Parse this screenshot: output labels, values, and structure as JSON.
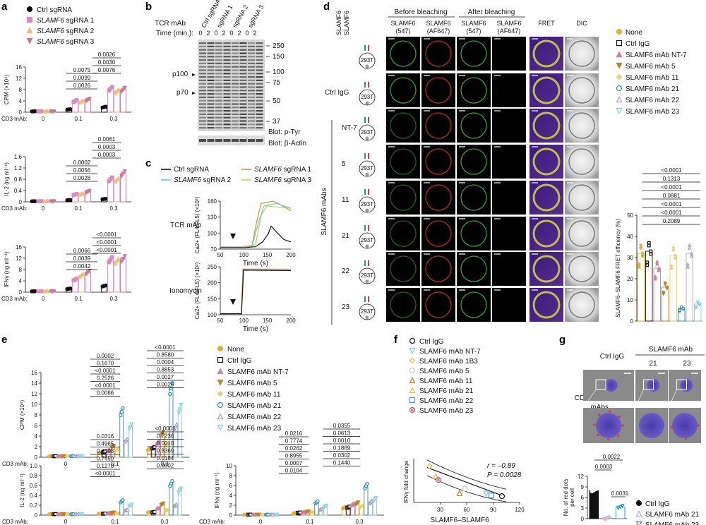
{
  "panels": {
    "a": {
      "label": "a",
      "legend": [
        {
          "name": "Ctrl sgRNA",
          "color": "#111111",
          "marker": "circle"
        },
        {
          "name": "SLAMF6",
          "suffix": " sgRNA 1",
          "color": "#d98cc2",
          "marker": "square"
        },
        {
          "name": "SLAMF6",
          "suffix": " sgRNA 2",
          "color": "#e9c26a",
          "marker": "triangle"
        },
        {
          "name": "SLAMF6",
          "suffix": " sgRNA 3",
          "color": "#c8789e",
          "marker": "triangle-down"
        }
      ],
      "xlabel": "CD3 mAb:",
      "categories": [
        "0",
        "0.1",
        "0.3"
      ]
    },
    "b": {
      "label": "b",
      "treatment_label": "TCR mAb",
      "time_label": "Time (min.):",
      "lanes": [
        "Ctrl sgRNA",
        "sgRNA 1",
        "sgRNA 2",
        "sgRNA 3"
      ],
      "times": [
        "0",
        "2",
        "0",
        "2",
        "0",
        "2",
        "0",
        "2"
      ],
      "mw": [
        "250",
        "150",
        "100",
        "75",
        "50",
        "37"
      ],
      "bands": [
        "p100",
        "p70"
      ],
      "blots": [
        "Blot: p-Tyr",
        "Blot: β-Actin"
      ]
    },
    "c": {
      "label": "c",
      "legend": [
        {
          "name": "Ctrl sgRNA",
          "color": "#111111"
        },
        {
          "name": "SLAMF6",
          "suffix": " sgRNA 1",
          "color": "#c9962a"
        },
        {
          "name": "SLAMF6",
          "suffix": " sgRNA 2",
          "color": "#6ec6d2"
        },
        {
          "name": "SLAMF6",
          "suffix": " sgRNA 3",
          "color": "#c4cc62"
        }
      ],
      "row_labels": [
        "TCR mAb",
        "Ionomycin"
      ],
      "ylabel": "Ca2+ (FL4/FL5) (×10³)",
      "xlabel": "Time (s)"
    },
    "d": {
      "label": "d",
      "col_groups": [
        "Before bleaching",
        "After bleaching"
      ],
      "col_headers": [
        "SLAMF6 (547)",
        "SLAMF6 (AF647)",
        "SLAMF6 (547)",
        "SLAMF6 (AF647)",
        "FRET",
        "DIC"
      ],
      "row_header_top": [
        "SLAMF6",
        "SLAMF6"
      ],
      "row_labels": [
        "",
        "Ctrl IgG",
        "NT-7",
        "5",
        "11",
        "21",
        "22",
        "23"
      ],
      "mabs_label": "SLAMF6 mAbs",
      "legend": [
        {
          "name": "None",
          "color": "#e0b040",
          "marker": "circle"
        },
        {
          "name": "Ctrl IgG",
          "color": "#111111",
          "marker": "open-square"
        },
        {
          "name": "SLAMF6 mAb NT-7",
          "color": "#d97aa0",
          "marker": "triangle"
        },
        {
          "name": "SLAMF6 mAb 5",
          "color": "#b8862a",
          "marker": "triangle-down"
        },
        {
          "name": "SLAMF6 mAb 11",
          "color": "#e8d070",
          "marker": "diamond"
        },
        {
          "name": "SLAMF6 mAb 21",
          "color": "#2a8fa8",
          "marker": "open-circle"
        },
        {
          "name": "SLAMF6 mAb 22",
          "color": "#b0a0c0",
          "marker": "open-triangle"
        },
        {
          "name": "SLAMF6 mAb 23",
          "color": "#7fd0e0",
          "marker": "open-triangle-down"
        }
      ],
      "fret_chart": {
        "ylabel": "SLAMF6–SLAMF6 FRET efficiency (%)",
        "yticks": [
          "0",
          "10",
          "20",
          "30",
          "40",
          "50"
        ],
        "pvalues": [
          "<0.0001",
          "0.1313",
          "<0.0001",
          "0.0881",
          "<0.0001",
          "<0.0001",
          "0.2089"
        ]
      }
    },
    "e": {
      "label": "e",
      "xlabel": "CD3 mAb:",
      "categories": [
        "0",
        "0.1",
        "0.3"
      ],
      "legend": [
        {
          "name": "None",
          "color": "#e0b040",
          "marker": "circle"
        },
        {
          "name": "Ctrl IgG",
          "color": "#111111",
          "marker": "open-square"
        },
        {
          "name": "SLAMF6 mAb NT-7",
          "color": "#d97aa0",
          "marker": "triangle"
        },
        {
          "name": "SLAMF6 mAb 5",
          "color": "#b8862a",
          "marker": "triangle-down"
        },
        {
          "name": "SLAMF6 mAb 11",
          "color": "#e8d070",
          "marker": "diamond"
        },
        {
          "name": "SLAMF6 mAb 21",
          "color": "#2a8fa8",
          "marker": "open-circle"
        },
        {
          "name": "SLAMF6 mAb 22",
          "color": "#b0a0c0",
          "marker": "open-triangle"
        },
        {
          "name": "SLAMF6 mAb 23",
          "color": "#7fd0e0",
          "marker": "open-triangle-down"
        }
      ]
    },
    "f": {
      "label": "f",
      "legend": [
        {
          "name": "Ctrl IgG",
          "color": "#111111",
          "marker": "open-circle"
        },
        {
          "name": "SLAMF6 mAb NT-7",
          "color": "#7fd0e0",
          "marker": "open-triangle-down"
        },
        {
          "name": "SLAMF6 mAb 1B3",
          "color": "#e8c040",
          "marker": "open-diamond"
        },
        {
          "name": "SLAMF6 mAb 5",
          "color": "#b0d8b0",
          "marker": "open-circle"
        },
        {
          "name": "SLAMF6 mAb 11",
          "color": "#b8862a",
          "marker": "open-triangle"
        },
        {
          "name": "SLAMF6 mAb 21",
          "color": "#e8c040",
          "marker": "open-triangle"
        },
        {
          "name": "SLAMF6 mAb 22",
          "color": "#4a90d0",
          "marker": "open-square"
        },
        {
          "name": "SLAMF6 mAb 23",
          "color": "#d05070",
          "marker": "circle-x"
        }
      ],
      "stats": [
        "r = –0.89",
        "P = 0.0028"
      ],
      "ylabel": "IFNγ fold change",
      "xlabel": [
        "SLAMF6–SLAMF6",
        "FRET efficiency (%)"
      ],
      "xticks": [
        "30",
        "60",
        "90",
        "120"
      ]
    },
    "g": {
      "label": "g",
      "header_left": "Ctrl IgG",
      "header_group": "SLAMF6 mAb",
      "sub_headers": [
        "21",
        "23"
      ],
      "row_label": [
        "CD3/CD28",
        "mAbs"
      ],
      "legend": [
        {
          "name": "Ctrl IgG",
          "color": "#111111",
          "marker": "circle"
        },
        {
          "name": "SLAMF6 mAb 21",
          "color": "#c9a0c8",
          "marker": "open-triangle"
        },
        {
          "name": "SLAMF6 mAb 23",
          "color": "#2a8fa8",
          "marker": "open-triangle-down"
        }
      ]
    }
  },
  "chart_data": [
    {
      "id": "a-cpm",
      "type": "bar",
      "ylabel": "CPM (×10⁴)",
      "yticks": [
        "0",
        "4",
        "8",
        "12",
        "16"
      ],
      "ylim": [
        0,
        16
      ],
      "categories": [
        "0",
        "0.1",
        "0.3"
      ],
      "series": [
        {
          "name": "Ctrl sgRNA",
          "values": [
            0.3,
            1.0,
            1.8
          ]
        },
        {
          "name": "SLAMF6 sgRNA 1",
          "values": [
            0.3,
            4.0,
            8.3
          ]
        },
        {
          "name": "SLAMF6 sgRNA 2",
          "values": [
            0.3,
            3.8,
            7.4
          ]
        },
        {
          "name": "SLAMF6 sgRNA 3",
          "values": [
            0.3,
            4.4,
            8.0
          ]
        }
      ],
      "pvalues": [
        "0.0026",
        "0.0030",
        "0.0076",
        "0.0075",
        "0.0099",
        "0.0026"
      ]
    },
    {
      "id": "a-il2",
      "type": "bar",
      "ylabel": "IL-2 (ng ml⁻¹)",
      "yticks": [
        "0",
        "0.4",
        "0.8",
        "1.2",
        "1.6"
      ],
      "ylim": [
        0,
        1.6
      ],
      "categories": [
        "0",
        "0.1",
        "0.3"
      ],
      "series": [
        {
          "name": "Ctrl sgRNA",
          "values": [
            0.02,
            0.06,
            0.1
          ]
        },
        {
          "name": "SLAMF6 sgRNA 1",
          "values": [
            0.02,
            0.26,
            0.8
          ]
        },
        {
          "name": "SLAMF6 sgRNA 2",
          "values": [
            0.02,
            0.28,
            0.78
          ]
        },
        {
          "name": "SLAMF6 sgRNA 3",
          "values": [
            0.02,
            0.36,
            1.0
          ]
        }
      ],
      "pvalues": [
        "0.0061",
        "0.0003",
        "0.0003",
        "0.0002",
        "0.0056",
        "0.0028"
      ]
    },
    {
      "id": "a-ifng",
      "type": "bar",
      "ylabel": "IFNγ (ng ml⁻¹)",
      "yticks": [
        "0",
        "4",
        "8",
        "12",
        "16"
      ],
      "ylim": [
        0,
        16
      ],
      "categories": [
        "0",
        "0.1",
        "0.3"
      ],
      "series": [
        {
          "name": "Ctrl sgRNA",
          "values": [
            0.3,
            1.2,
            2.2
          ]
        },
        {
          "name": "SLAMF6 sgRNA 1",
          "values": [
            0.3,
            4.5,
            11.5
          ]
        },
        {
          "name": "SLAMF6 sgRNA 2",
          "values": [
            0.3,
            6.0,
            11.0
          ]
        },
        {
          "name": "SLAMF6 sgRNA 3",
          "values": [
            0.3,
            7.0,
            11.8
          ]
        }
      ],
      "pvalues": [
        "<0.0001",
        "<0.0001",
        "<0.0001",
        "0.0066",
        "0.0039",
        "0.0042"
      ]
    },
    {
      "id": "e-cpm",
      "type": "bar",
      "ylabel": "CPM (×10⁴)",
      "yticks": [
        "0",
        "2",
        "4",
        "6",
        "8",
        "10",
        "12",
        "14",
        "16"
      ],
      "ylim": [
        0,
        16
      ],
      "categories": [
        "0",
        "0.1",
        "0.3"
      ],
      "series": [
        {
          "name": "None",
          "values": [
            0.2,
            0.8,
            1.5
          ]
        },
        {
          "name": "Ctrl IgG",
          "values": [
            0.2,
            1.0,
            1.8
          ]
        },
        {
          "name": "SLAMF6 mAb NT-7",
          "values": [
            0.2,
            1.3,
            2.8
          ]
        },
        {
          "name": "SLAMF6 mAb 5",
          "values": [
            0.2,
            2.0,
            4.5
          ]
        },
        {
          "name": "SLAMF6 mAb 11",
          "values": [
            0.2,
            1.4,
            2.5
          ]
        },
        {
          "name": "SLAMF6 mAb 21",
          "values": [
            0.2,
            8.6,
            13.0
          ]
        },
        {
          "name": "SLAMF6 mAb 22",
          "values": [
            0.2,
            3.2,
            5.8
          ]
        },
        {
          "name": "SLAMF6 mAb 23",
          "values": [
            0.2,
            5.8,
            9.2
          ]
        }
      ],
      "pvalues": [
        "0.0002",
        "0.1670",
        "<0.0001",
        "0.2526",
        "<0.0001",
        "0.0066",
        "<0.0001",
        "0.8580",
        "0.0004",
        "0.8853",
        "0.0027",
        "0.0026"
      ]
    },
    {
      "id": "e-il2",
      "type": "bar",
      "ylabel": "IL-2 (ng ml⁻¹)",
      "yticks": [
        "0",
        "0.2",
        "0.4",
        "0.6",
        "0.8",
        "1.0"
      ],
      "ylim": [
        0,
        1.0
      ],
      "categories": [
        "0",
        "0.1",
        "0.3"
      ],
      "series": [
        {
          "name": "None",
          "values": [
            0.02,
            0.03,
            0.06
          ]
        },
        {
          "name": "Ctrl IgG",
          "values": [
            0.02,
            0.03,
            0.06
          ]
        },
        {
          "name": "SLAMF6 mAb NT-7",
          "values": [
            0.02,
            0.04,
            0.14
          ]
        },
        {
          "name": "SLAMF6 mAb 5",
          "values": [
            0.02,
            0.05,
            0.22
          ]
        },
        {
          "name": "SLAMF6 mAb 11",
          "values": [
            0.02,
            0.04,
            0.1
          ]
        },
        {
          "name": "SLAMF6 mAb 21",
          "values": [
            0.02,
            0.28,
            0.64
          ]
        },
        {
          "name": "SLAMF6 mAb 22",
          "values": [
            0.02,
            0.1,
            0.2
          ]
        },
        {
          "name": "SLAMF6 mAb 23",
          "values": [
            0.02,
            0.2,
            0.5
          ]
        }
      ],
      "pvalues": [
        "0.0316",
        "0.4965",
        "0.0108",
        "0.7450",
        "0.1270",
        "<0.0001",
        "<0.0001",
        "0.7236",
        "0.0010",
        "0.8369",
        "0.0184",
        "0.0002"
      ]
    },
    {
      "id": "e-ifng",
      "type": "bar",
      "ylabel": "IFNγ (ng ml⁻¹)",
      "yticks": [
        "0",
        "2",
        "4",
        "6",
        "8",
        "10"
      ],
      "ylim": [
        0,
        10
      ],
      "categories": [
        "0",
        "0.1",
        "0.3"
      ],
      "series": [
        {
          "name": "None",
          "values": [
            0.1,
            0.4,
            1.5
          ]
        },
        {
          "name": "Ctrl IgG",
          "values": [
            0.1,
            0.5,
            1.6
          ]
        },
        {
          "name": "SLAMF6 mAb NT-7",
          "values": [
            0.1,
            0.6,
            2.2
          ]
        },
        {
          "name": "SLAMF6 mAb 5",
          "values": [
            0.1,
            0.7,
            2.4
          ]
        },
        {
          "name": "SLAMF6 mAb 11",
          "values": [
            0.1,
            0.6,
            1.8
          ]
        },
        {
          "name": "SLAMF6 mAb 21",
          "values": [
            0.1,
            2.6,
            5.9
          ]
        },
        {
          "name": "SLAMF6 mAb 22",
          "values": [
            0.1,
            1.2,
            2.6
          ]
        },
        {
          "name": "SLAMF6 mAb 23",
          "values": [
            0.1,
            1.8,
            3.2
          ]
        }
      ],
      "pvalues": [
        "0.0216",
        "0.7774",
        "0.0262",
        "0.8955",
        "0.0007",
        "0.0104",
        "0.0355",
        "0.0613",
        "0.0010",
        "0.1869",
        "0.0302",
        "0.1440"
      ]
    },
    {
      "id": "d-fret",
      "type": "bar",
      "ylabel": "SLAMF6–SLAMF6 FRET efficiency (%)",
      "ylim": [
        0,
        50
      ],
      "categories": [
        "None",
        "Ctrl IgG",
        "SLAMF6 mAb NT-7",
        "SLAMF6 mAb 5",
        "SLAMF6 mAb 11",
        "SLAMF6 mAb 21",
        "SLAMF6 mAb 22",
        "SLAMF6 mAb 23"
      ],
      "values": [
        32,
        33,
        25,
        16,
        31,
        6,
        32,
        8
      ]
    },
    {
      "id": "f-scatter",
      "type": "scatter",
      "xlabel": "SLAMF6–SLAMF6 FRET efficiency (%)",
      "ylabel": "IFNγ fold change",
      "xlim": [
        0,
        120
      ],
      "points": [
        {
          "name": "Ctrl IgG",
          "x": 100,
          "y": 1.0
        },
        {
          "name": "SLAMF6 mAb NT-7",
          "x": 82,
          "y": 1.4
        },
        {
          "name": "SLAMF6 mAb 1B3",
          "x": 18,
          "y": 5.8
        },
        {
          "name": "SLAMF6 mAb 5",
          "x": 58,
          "y": 2.2
        },
        {
          "name": "SLAMF6 mAb 11",
          "x": 52,
          "y": 1.5
        },
        {
          "name": "SLAMF6 mAb 21",
          "x": 25,
          "y": 4.2
        },
        {
          "name": "SLAMF6 mAb 22",
          "x": 88,
          "y": 1.1
        },
        {
          "name": "SLAMF6 mAb 23",
          "x": 28,
          "y": 3.6
        }
      ]
    },
    {
      "id": "g-dots",
      "type": "bar",
      "ylabel": "No. of red dots per cell",
      "yticks": [
        "0",
        "3",
        "6",
        "9",
        "12"
      ],
      "ylim": [
        0,
        12
      ],
      "categories": [
        "Ctrl IgG",
        "SLAMF6 mAb 21",
        "SLAMF6 mAb 23"
      ],
      "values": [
        8.0,
        0.3,
        3.3
      ],
      "pvalues": [
        "0.0022",
        "0.0003",
        "0.0031"
      ]
    }
  ]
}
